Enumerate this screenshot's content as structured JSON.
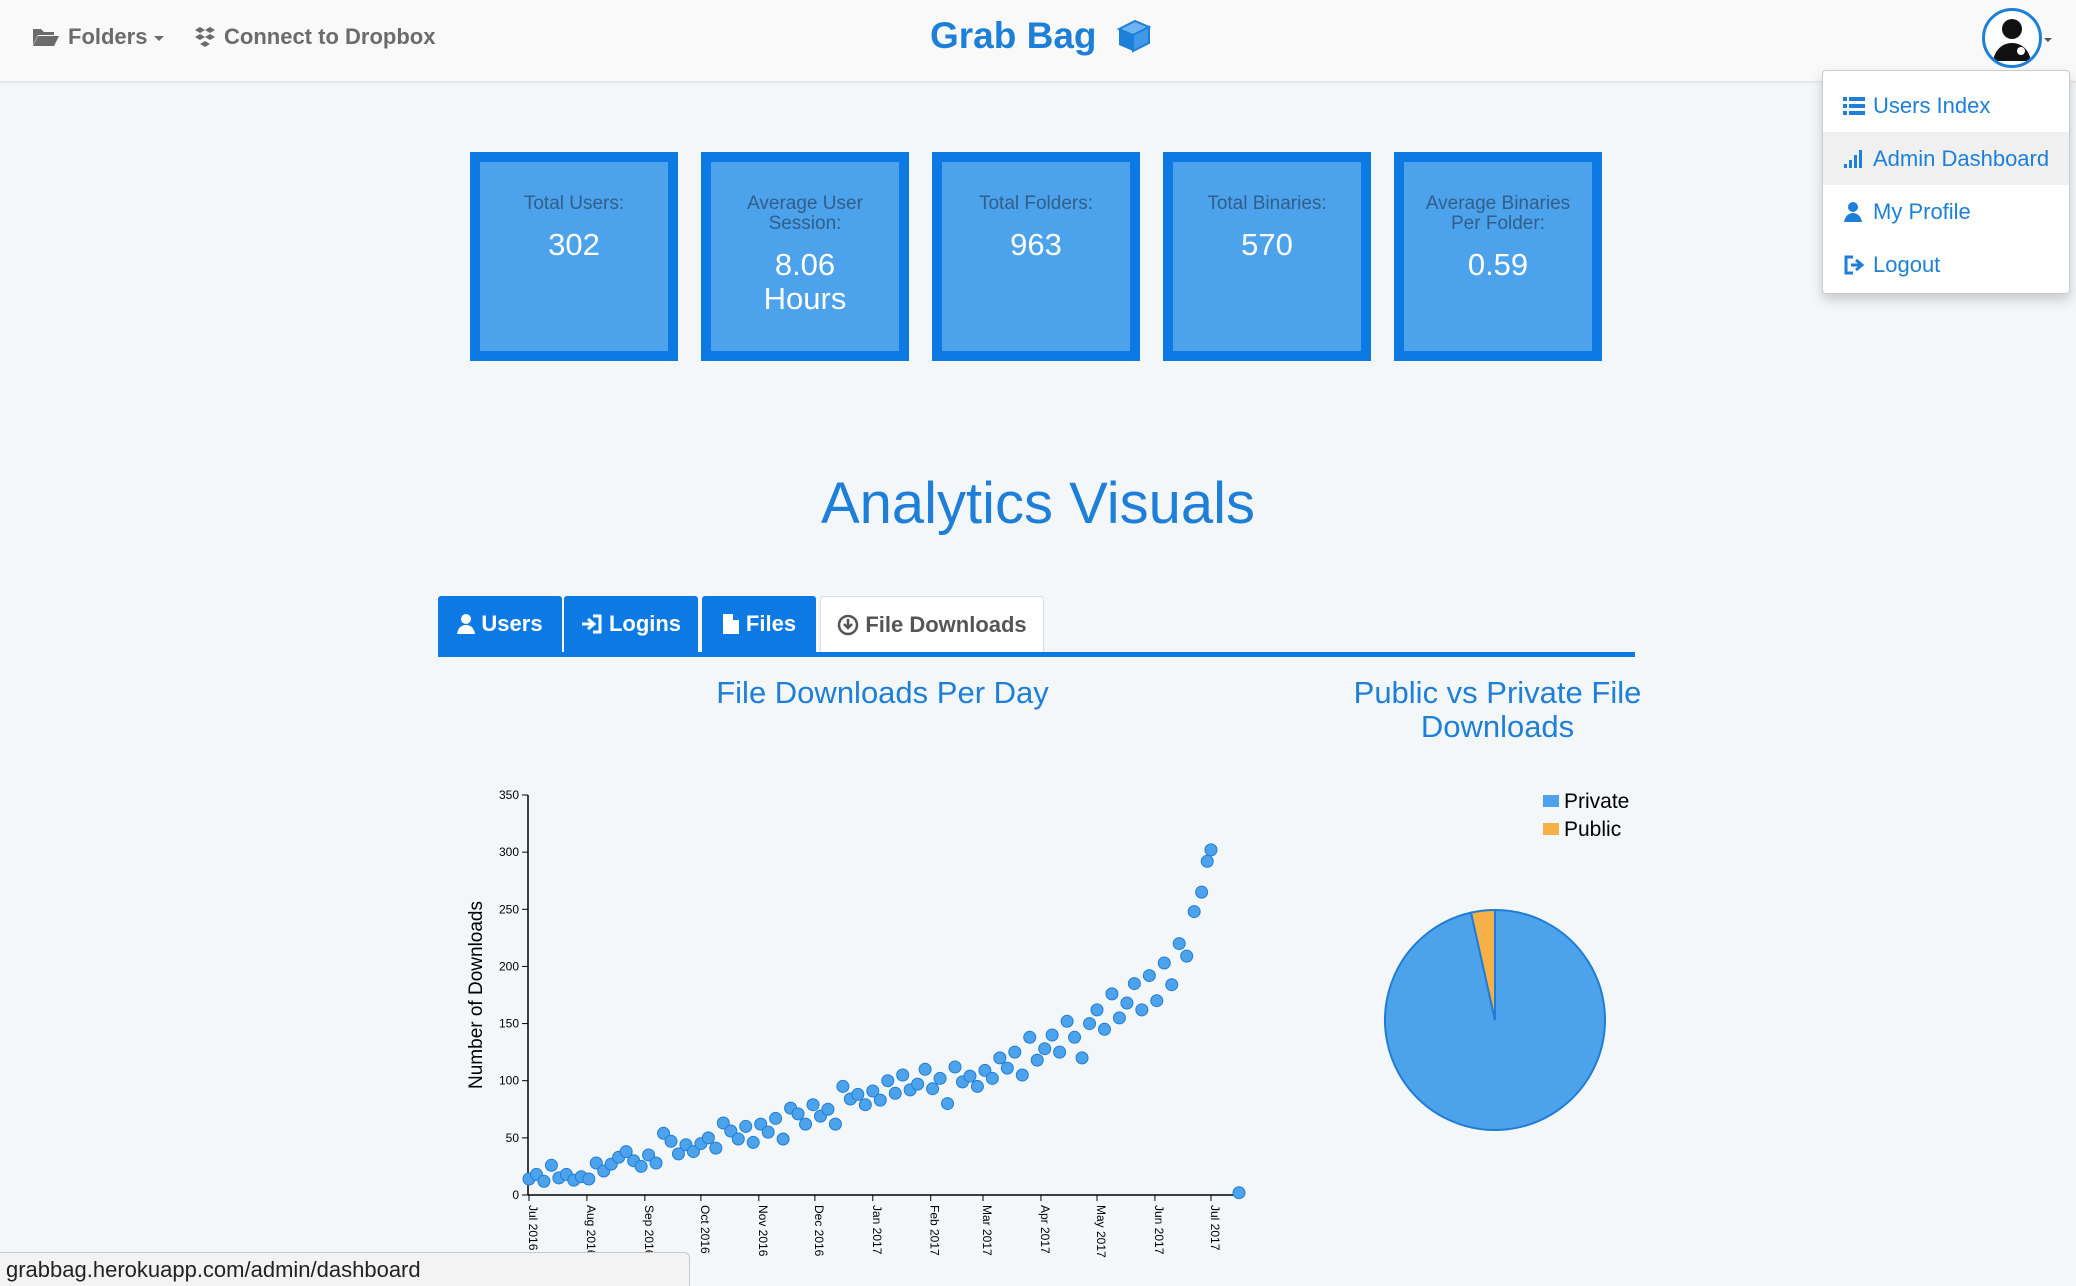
{
  "navbar": {
    "folders_label": "Folders",
    "dropbox_label": "Connect to Dropbox",
    "brand": "Grab Bag"
  },
  "user_menu": {
    "items": [
      {
        "label": "Users Index",
        "icon": "list-icon"
      },
      {
        "label": "Admin Dashboard",
        "icon": "signal-bars-icon"
      },
      {
        "label": "My Profile",
        "icon": "user-icon"
      },
      {
        "label": "Logout",
        "icon": "logout-icon"
      }
    ]
  },
  "stats": [
    {
      "label": "Total Users:",
      "value": "302"
    },
    {
      "label": "Average User Session:",
      "value": "8.06 Hours"
    },
    {
      "label": "Total Folders:",
      "value": "963"
    },
    {
      "label": "Total Binaries:",
      "value": "570"
    },
    {
      "label": "Average Binaries Per Folder:",
      "value": "0.59"
    }
  ],
  "section_title": "Analytics Visuals",
  "tabs": [
    {
      "label": "Users",
      "icon": "user-icon"
    },
    {
      "label": "Logins",
      "icon": "login-icon"
    },
    {
      "label": "Files",
      "icon": "file-icon"
    },
    {
      "label": "File Downloads",
      "icon": "download-circle-icon"
    }
  ],
  "status_url": "grabbag.herokuapp.com/admin/dashboard",
  "colors": {
    "primary": "#0d7ae3",
    "tile": "#4da2ec",
    "private": "#4da2ec",
    "public": "#f5b047"
  },
  "chart_data": [
    {
      "type": "scatter",
      "title": "File Downloads Per Day",
      "ylabel": "Number of Downloads",
      "xlabel": "",
      "ylim": [
        0,
        350
      ],
      "yticks": [
        0,
        50,
        100,
        150,
        200,
        250,
        300,
        350
      ],
      "xticks": [
        "Jul 2016",
        "Aug 2016",
        "Sep 2016",
        "Oct 2016",
        "Nov 2016",
        "Dec 2016",
        "Jan 2017",
        "Feb 2017",
        "Mar 2017",
        "Apr 2017",
        "May 2017",
        "Jun 2017",
        "Jul 2017"
      ],
      "x_range": [
        "2016-07-01",
        "2017-07-16"
      ],
      "points": [
        [
          "2016-07-01",
          14
        ],
        [
          "2016-07-05",
          18
        ],
        [
          "2016-07-09",
          12
        ],
        [
          "2016-07-13",
          26
        ],
        [
          "2016-07-17",
          15
        ],
        [
          "2016-07-21",
          18
        ],
        [
          "2016-07-25",
          13
        ],
        [
          "2016-07-29",
          16
        ],
        [
          "2016-08-02",
          14
        ],
        [
          "2016-08-06",
          28
        ],
        [
          "2016-08-10",
          21
        ],
        [
          "2016-08-14",
          27
        ],
        [
          "2016-08-18",
          33
        ],
        [
          "2016-08-22",
          38
        ],
        [
          "2016-08-26",
          30
        ],
        [
          "2016-08-30",
          25
        ],
        [
          "2016-09-03",
          35
        ],
        [
          "2016-09-07",
          28
        ],
        [
          "2016-09-11",
          54
        ],
        [
          "2016-09-15",
          47
        ],
        [
          "2016-09-19",
          36
        ],
        [
          "2016-09-23",
          44
        ],
        [
          "2016-09-27",
          38
        ],
        [
          "2016-10-01",
          45
        ],
        [
          "2016-10-05",
          50
        ],
        [
          "2016-10-09",
          41
        ],
        [
          "2016-10-13",
          63
        ],
        [
          "2016-10-17",
          56
        ],
        [
          "2016-10-21",
          49
        ],
        [
          "2016-10-25",
          60
        ],
        [
          "2016-10-29",
          46
        ],
        [
          "2016-11-02",
          62
        ],
        [
          "2016-11-06",
          55
        ],
        [
          "2016-11-10",
          67
        ],
        [
          "2016-11-14",
          49
        ],
        [
          "2016-11-18",
          76
        ],
        [
          "2016-11-22",
          71
        ],
        [
          "2016-11-26",
          62
        ],
        [
          "2016-11-30",
          79
        ],
        [
          "2016-12-04",
          69
        ],
        [
          "2016-12-08",
          75
        ],
        [
          "2016-12-12",
          62
        ],
        [
          "2016-12-16",
          95
        ],
        [
          "2016-12-20",
          84
        ],
        [
          "2016-12-24",
          88
        ],
        [
          "2016-12-28",
          79
        ],
        [
          "2017-01-01",
          91
        ],
        [
          "2017-01-05",
          83
        ],
        [
          "2017-01-09",
          100
        ],
        [
          "2017-01-13",
          89
        ],
        [
          "2017-01-17",
          105
        ],
        [
          "2017-01-21",
          92
        ],
        [
          "2017-01-25",
          97
        ],
        [
          "2017-01-29",
          110
        ],
        [
          "2017-02-02",
          93
        ],
        [
          "2017-02-06",
          102
        ],
        [
          "2017-02-10",
          80
        ],
        [
          "2017-02-14",
          112
        ],
        [
          "2017-02-18",
          99
        ],
        [
          "2017-02-22",
          104
        ],
        [
          "2017-02-26",
          95
        ],
        [
          "2017-03-02",
          109
        ],
        [
          "2017-03-06",
          102
        ],
        [
          "2017-03-10",
          120
        ],
        [
          "2017-03-14",
          111
        ],
        [
          "2017-03-18",
          125
        ],
        [
          "2017-03-22",
          105
        ],
        [
          "2017-03-26",
          138
        ],
        [
          "2017-03-30",
          118
        ],
        [
          "2017-04-03",
          128
        ],
        [
          "2017-04-07",
          140
        ],
        [
          "2017-04-11",
          125
        ],
        [
          "2017-04-15",
          152
        ],
        [
          "2017-04-19",
          138
        ],
        [
          "2017-04-23",
          120
        ],
        [
          "2017-04-27",
          150
        ],
        [
          "2017-05-01",
          162
        ],
        [
          "2017-05-05",
          145
        ],
        [
          "2017-05-09",
          176
        ],
        [
          "2017-05-13",
          155
        ],
        [
          "2017-05-17",
          168
        ],
        [
          "2017-05-21",
          185
        ],
        [
          "2017-05-25",
          162
        ],
        [
          "2017-05-29",
          192
        ],
        [
          "2017-06-02",
          170
        ],
        [
          "2017-06-06",
          203
        ],
        [
          "2017-06-10",
          184
        ],
        [
          "2017-06-14",
          220
        ],
        [
          "2017-06-18",
          209
        ],
        [
          "2017-06-22",
          248
        ],
        [
          "2017-06-26",
          265
        ],
        [
          "2017-06-29",
          292
        ],
        [
          "2017-07-01",
          302
        ],
        [
          "2017-07-16",
          2
        ]
      ]
    },
    {
      "type": "pie",
      "title": "Public vs Private File Downloads",
      "legend_position": "top-right",
      "slices": [
        {
          "name": "Private",
          "value": 96.5,
          "color": "#4da2ec"
        },
        {
          "name": "Public",
          "value": 3.5,
          "color": "#f5b047"
        }
      ]
    }
  ]
}
